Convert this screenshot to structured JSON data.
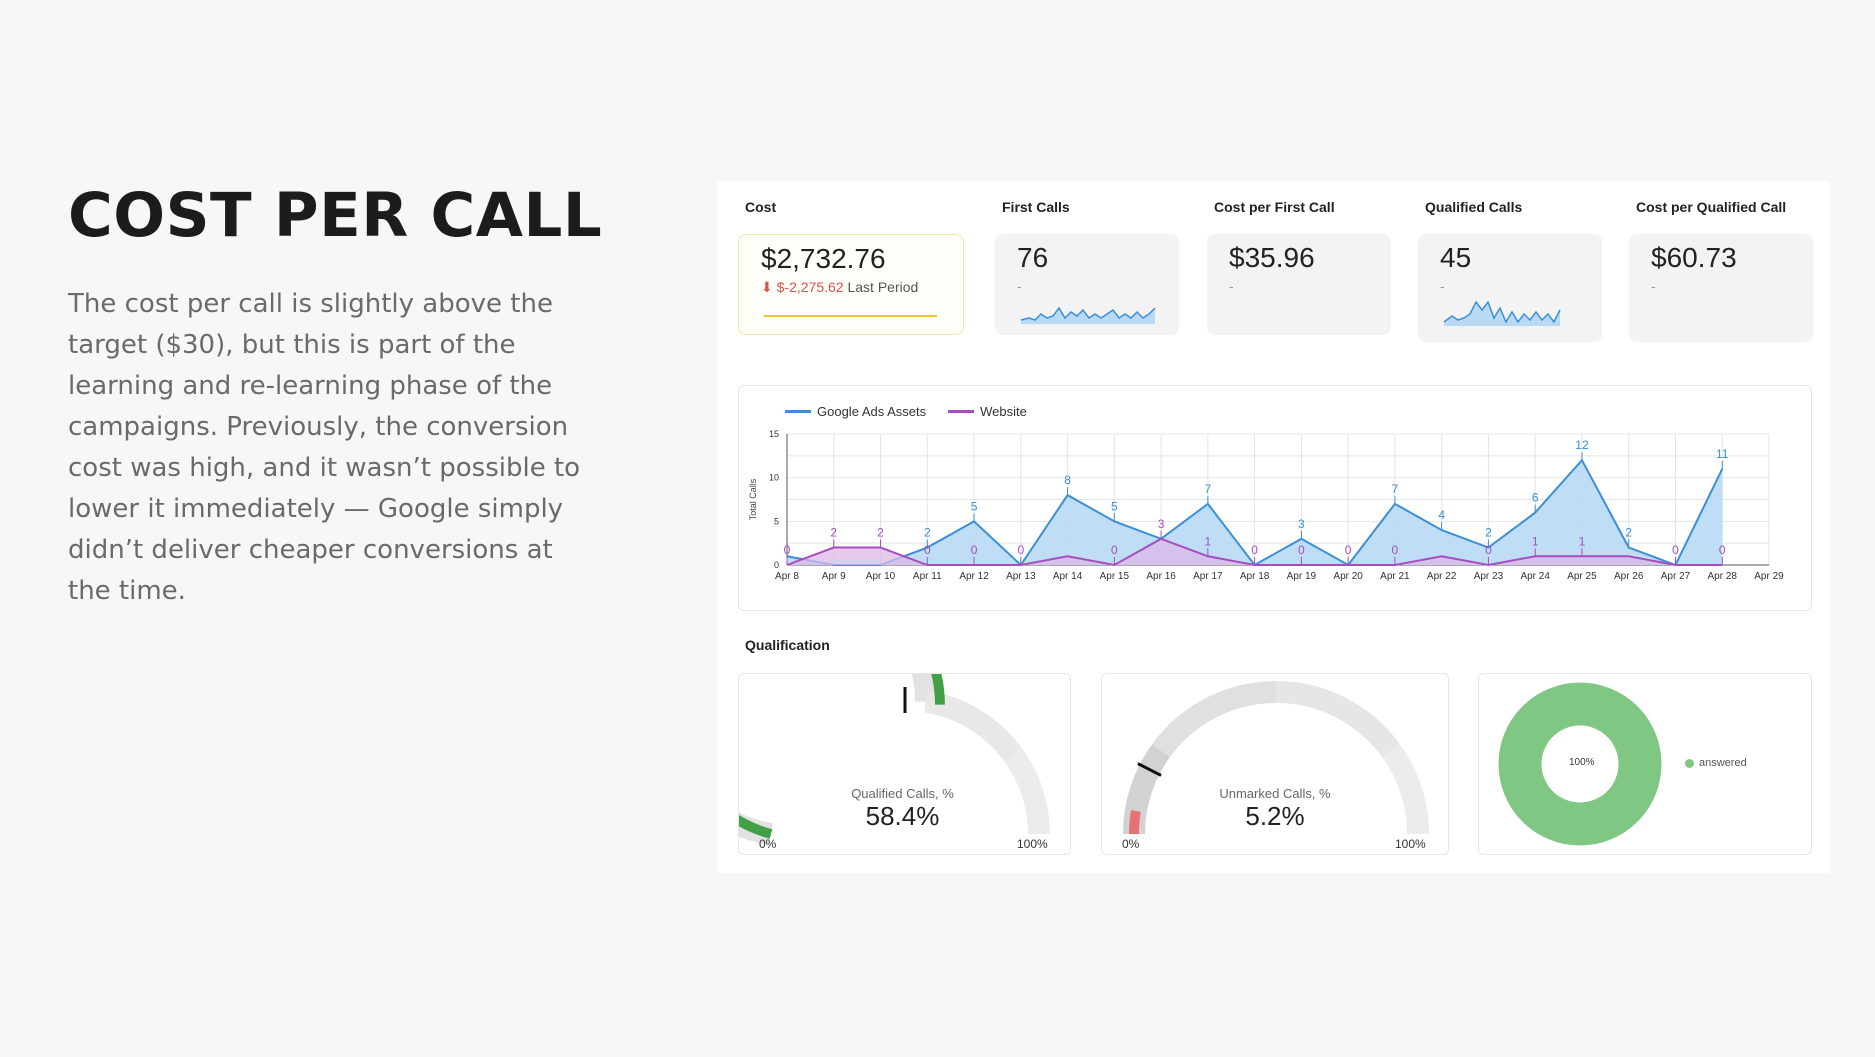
{
  "slide": {
    "title": "COST PER CALL",
    "body": "The cost per call is slightly above the target ($30), but this is part of the learning and re-learning phase of the campaigns. Previously, the conversion cost was high, and it wasn’t possible to lower it immediately — Google simply didn’t deliver cheaper conversions at the time."
  },
  "kpis": [
    {
      "title": "Cost",
      "value": "$2,732.76",
      "delta": "$-2,275.62",
      "delta_label": "Last Period",
      "sub": ""
    },
    {
      "title": "First Calls",
      "value": "76",
      "sub": "-"
    },
    {
      "title": "Cost per First Call",
      "value": "$35.96",
      "sub": "-"
    },
    {
      "title": "Qualified Calls",
      "value": "45",
      "sub": "-"
    },
    {
      "title": "Cost per Qualified Call",
      "value": "$60.73",
      "sub": "-"
    }
  ],
  "colors": {
    "blue": "#3a8fd6",
    "blue_fill": "#b9d9f5",
    "purple": "#a64dbf",
    "purple_fill": "#dcb8e8",
    "green": "#43a047",
    "green_light": "#81c784",
    "red": "#e57373",
    "yellow": "#f4c430"
  },
  "chart_data": {
    "type": "area",
    "ylabel": "Total Calls",
    "ylim": [
      0,
      15
    ],
    "yticks": [
      0,
      5,
      10,
      15
    ],
    "categories": [
      "Apr 8",
      "Apr 9",
      "Apr 10",
      "Apr 11",
      "Apr 12",
      "Apr 13",
      "Apr 14",
      "Apr 15",
      "Apr 16",
      "Apr 17",
      "Apr 18",
      "Apr 19",
      "Apr 20",
      "Apr 21",
      "Apr 22",
      "Apr 23",
      "Apr 24",
      "Apr 25",
      "Apr 26",
      "Apr 27",
      "Apr 28",
      "Apr 29"
    ],
    "series": [
      {
        "name": "Google Ads Assets",
        "values": [
          1,
          0,
          0,
          2,
          5,
          0,
          8,
          5,
          3,
          7,
          0,
          3,
          0,
          7,
          4,
          2,
          6,
          12,
          2,
          0,
          11,
          null
        ],
        "labels": [
          "",
          "",
          "",
          "2",
          "5",
          "",
          "8",
          "5",
          "",
          "7",
          "",
          "3",
          "",
          "7",
          "4",
          "2",
          "6",
          "12",
          "2",
          "",
          "11",
          ""
        ]
      },
      {
        "name": "Website",
        "values": [
          0,
          2,
          2,
          0,
          0,
          0,
          1,
          0,
          3,
          1,
          0,
          0,
          0,
          0,
          1,
          0,
          1,
          1,
          1,
          0,
          0,
          null
        ],
        "labels": [
          "0",
          "2",
          "2",
          "0",
          "0",
          "0",
          "",
          "0",
          "3",
          "1",
          "0",
          "0",
          "0",
          "0",
          "",
          "0",
          "1",
          "1",
          "",
          "0",
          "0",
          ""
        ]
      }
    ]
  },
  "qualification": {
    "title": "Qualification",
    "gauge1": {
      "label": "Qualified Calls, %",
      "value": "58.4%",
      "fraction": 0.584,
      "target": 0.5,
      "min": "0%",
      "max": "100%"
    },
    "gauge2": {
      "label": "Unmarked Calls, %",
      "value": "5.2%",
      "fraction": 0.052,
      "target": 0.15,
      "min": "0%",
      "max": "100%"
    },
    "donut": {
      "center": "100%",
      "legend": "answered",
      "fraction": 1.0
    }
  }
}
